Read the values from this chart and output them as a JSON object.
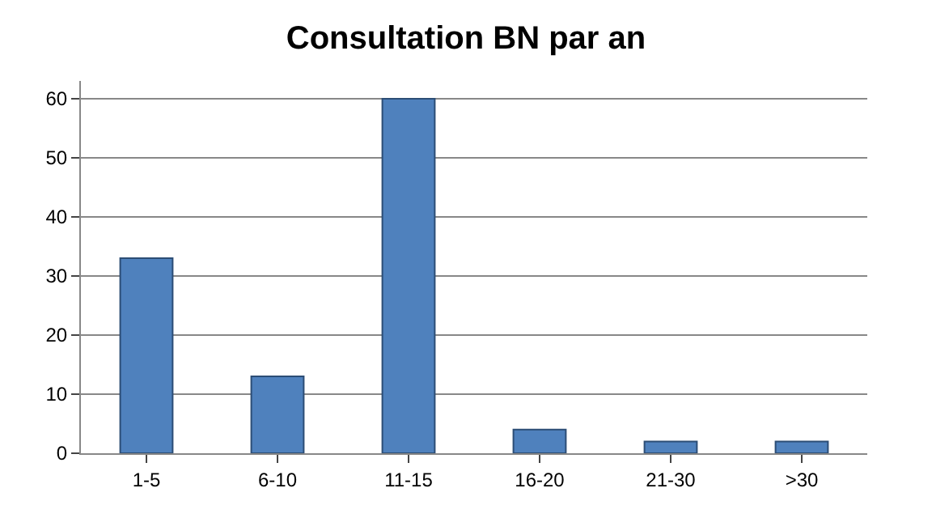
{
  "chart_data": {
    "type": "bar",
    "title": "Consultation BN par an",
    "categories": [
      "1-5",
      "6-10",
      "11-15",
      "16-20",
      "21-30",
      ">30"
    ],
    "values": [
      33,
      13,
      60,
      4,
      2,
      2
    ],
    "color": "#4f81bd",
    "ylim": [
      0,
      63
    ],
    "yticks": [
      0,
      10,
      20,
      30,
      40,
      50,
      60
    ],
    "grid": "y",
    "legend": false
  }
}
